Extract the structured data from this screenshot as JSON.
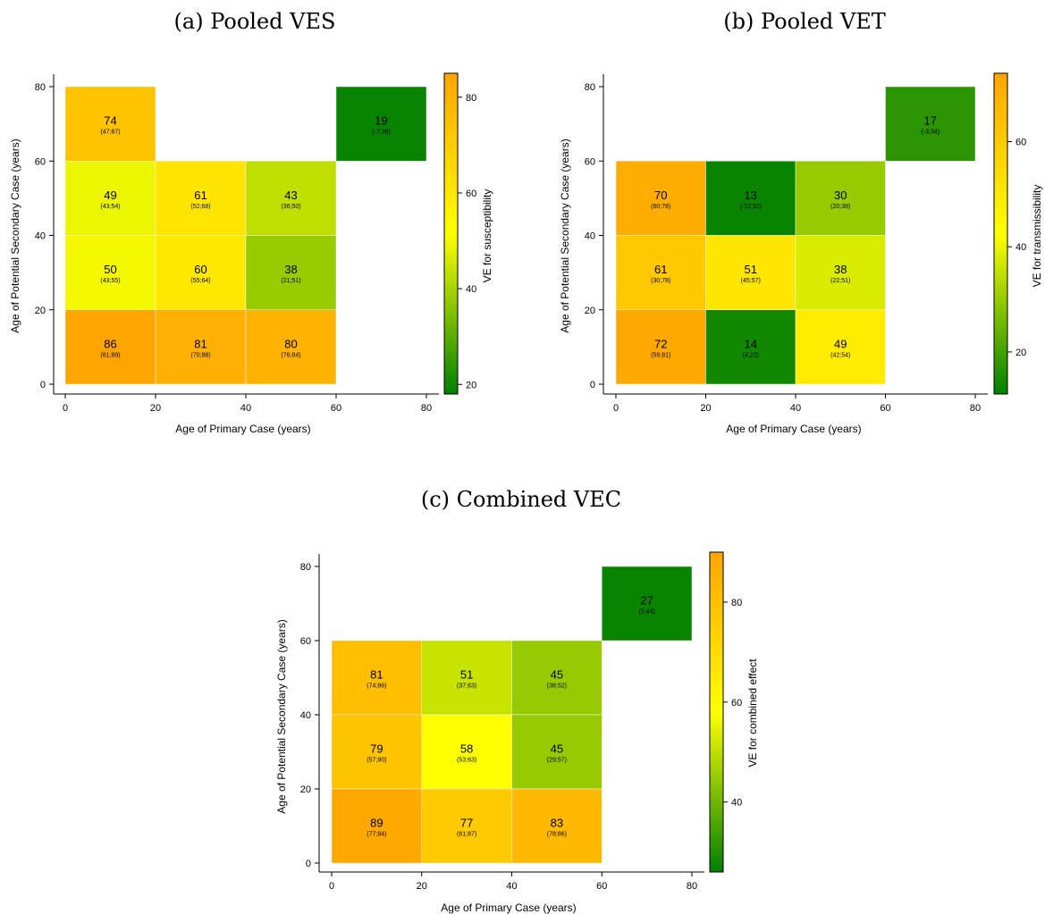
{
  "chart_data": [
    {
      "type": "heatmap",
      "title": "(a) Pooled VES",
      "xlabel": "Age of Primary Case (years)",
      "ylabel": "Age of Potential Secondary Case (years)",
      "colorbar_label": "VE for susceptibility",
      "xlim": [
        0,
        80
      ],
      "ylim": [
        0,
        80
      ],
      "xticks": [
        "0",
        "20",
        "40",
        "60",
        "80"
      ],
      "yticks": [
        "0",
        "20",
        "40",
        "60",
        "80"
      ],
      "colorbar_range": [
        18,
        85
      ],
      "colorbar_ticks": [
        "20",
        "40",
        "60",
        "80"
      ],
      "colorbar_tick_values": [
        20,
        40,
        60,
        80
      ],
      "cells": [
        {
          "x0": 0,
          "x1": 20,
          "y0": 60,
          "y1": 80,
          "value": 74,
          "label": "74",
          "ci": "(47;87)"
        },
        {
          "x0": 60,
          "x1": 80,
          "y0": 60,
          "y1": 80,
          "value": 19,
          "label": "19",
          "ci": "(-7;38)"
        },
        {
          "x0": 0,
          "x1": 20,
          "y0": 40,
          "y1": 60,
          "value": 49,
          "label": "49",
          "ci": "(43;54)"
        },
        {
          "x0": 20,
          "x1": 40,
          "y0": 40,
          "y1": 60,
          "value": 61,
          "label": "61",
          "ci": "(52;68)"
        },
        {
          "x0": 40,
          "x1": 60,
          "y0": 40,
          "y1": 60,
          "value": 43,
          "label": "43",
          "ci": "(36;50)"
        },
        {
          "x0": 0,
          "x1": 20,
          "y0": 20,
          "y1": 40,
          "value": 50,
          "label": "50",
          "ci": "(43;55)"
        },
        {
          "x0": 20,
          "x1": 40,
          "y0": 20,
          "y1": 40,
          "value": 60,
          "label": "60",
          "ci": "(55;64)"
        },
        {
          "x0": 40,
          "x1": 60,
          "y0": 20,
          "y1": 40,
          "value": 38,
          "label": "38",
          "ci": "(21;51)"
        },
        {
          "x0": 0,
          "x1": 20,
          "y0": 0,
          "y1": 20,
          "value": 86,
          "label": "86",
          "ci": "(81;89)"
        },
        {
          "x0": 20,
          "x1": 40,
          "y0": 0,
          "y1": 20,
          "value": 81,
          "label": "81",
          "ci": "(70;88)"
        },
        {
          "x0": 40,
          "x1": 60,
          "y0": 0,
          "y1": 20,
          "value": 80,
          "label": "80",
          "ci": "(76;84)"
        }
      ]
    },
    {
      "type": "heatmap",
      "title": "(b) Pooled VET",
      "xlabel": "Age of Primary Case (years)",
      "ylabel": "Age of Potential Secondary Case (years)",
      "colorbar_label": "VE for transmissibility",
      "xlim": [
        0,
        80
      ],
      "ylim": [
        0,
        80
      ],
      "xticks": [
        "0",
        "20",
        "40",
        "60",
        "80"
      ],
      "yticks": [
        "0",
        "20",
        "40",
        "60",
        "80"
      ],
      "colorbar_range": [
        12,
        73
      ],
      "colorbar_ticks": [
        "20",
        "40",
        "60"
      ],
      "colorbar_tick_values": [
        20,
        40,
        60
      ],
      "cells": [
        {
          "x0": 60,
          "x1": 80,
          "y0": 60,
          "y1": 80,
          "value": 17,
          "label": "17",
          "ci": "(-3;34)"
        },
        {
          "x0": 0,
          "x1": 20,
          "y0": 40,
          "y1": 60,
          "value": 70,
          "label": "70",
          "ci": "(60;78)"
        },
        {
          "x0": 20,
          "x1": 40,
          "y0": 40,
          "y1": 60,
          "value": 13,
          "label": "13",
          "ci": "(-12;32)"
        },
        {
          "x0": 40,
          "x1": 60,
          "y0": 40,
          "y1": 60,
          "value": 30,
          "label": "30",
          "ci": "(20;38)"
        },
        {
          "x0": 0,
          "x1": 20,
          "y0": 20,
          "y1": 40,
          "value": 61,
          "label": "61",
          "ci": "(30;78)"
        },
        {
          "x0": 20,
          "x1": 40,
          "y0": 20,
          "y1": 40,
          "value": 51,
          "label": "51",
          "ci": "(45;57)"
        },
        {
          "x0": 40,
          "x1": 60,
          "y0": 20,
          "y1": 40,
          "value": 38,
          "label": "38",
          "ci": "(22;51)"
        },
        {
          "x0": 0,
          "x1": 20,
          "y0": 0,
          "y1": 20,
          "value": 72,
          "label": "72",
          "ci": "(59;81)"
        },
        {
          "x0": 20,
          "x1": 40,
          "y0": 0,
          "y1": 20,
          "value": 14,
          "label": "14",
          "ci": "(4;22)"
        },
        {
          "x0": 40,
          "x1": 60,
          "y0": 0,
          "y1": 20,
          "value": 49,
          "label": "49",
          "ci": "(42;54)"
        }
      ]
    },
    {
      "type": "heatmap",
      "title": "(c) Combined VEC",
      "xlabel": "Age of Primary Case (years)",
      "ylabel": "Age of Potential Secondary Case (years)",
      "colorbar_label": "VE for combined effect",
      "xlim": [
        0,
        80
      ],
      "ylim": [
        0,
        80
      ],
      "xticks": [
        "0",
        "20",
        "40",
        "60",
        "80"
      ],
      "yticks": [
        "0",
        "20",
        "40",
        "60",
        "80"
      ],
      "colorbar_range": [
        26,
        90
      ],
      "colorbar_ticks": [
        "40",
        "60",
        "80"
      ],
      "colorbar_tick_values": [
        40,
        60,
        80
      ],
      "cells": [
        {
          "x0": 60,
          "x1": 80,
          "y0": 60,
          "y1": 80,
          "value": 27,
          "label": "27",
          "ci": "(5;44)"
        },
        {
          "x0": 0,
          "x1": 20,
          "y0": 40,
          "y1": 60,
          "value": 81,
          "label": "81",
          "ci": "(74;86)"
        },
        {
          "x0": 20,
          "x1": 40,
          "y0": 40,
          "y1": 60,
          "value": 51,
          "label": "51",
          "ci": "(37;63)"
        },
        {
          "x0": 40,
          "x1": 60,
          "y0": 40,
          "y1": 60,
          "value": 45,
          "label": "45",
          "ci": "(38;52)"
        },
        {
          "x0": 0,
          "x1": 20,
          "y0": 20,
          "y1": 40,
          "value": 79,
          "label": "79",
          "ci": "(57;90)"
        },
        {
          "x0": 20,
          "x1": 40,
          "y0": 20,
          "y1": 40,
          "value": 58,
          "label": "58",
          "ci": "(53;63)"
        },
        {
          "x0": 40,
          "x1": 60,
          "y0": 20,
          "y1": 40,
          "value": 45,
          "label": "45",
          "ci": "(29;57)"
        },
        {
          "x0": 0,
          "x1": 20,
          "y0": 0,
          "y1": 20,
          "value": 89,
          "label": "89",
          "ci": "(77;94)"
        },
        {
          "x0": 20,
          "x1": 40,
          "y0": 0,
          "y1": 20,
          "value": 77,
          "label": "77",
          "ci": "(61;87)"
        },
        {
          "x0": 40,
          "x1": 60,
          "y0": 0,
          "y1": 20,
          "value": 83,
          "label": "83",
          "ci": "(78;86)"
        }
      ]
    }
  ],
  "colormap": {
    "low": "#008000",
    "mid": "#ffff00",
    "high": "#ffa500"
  }
}
